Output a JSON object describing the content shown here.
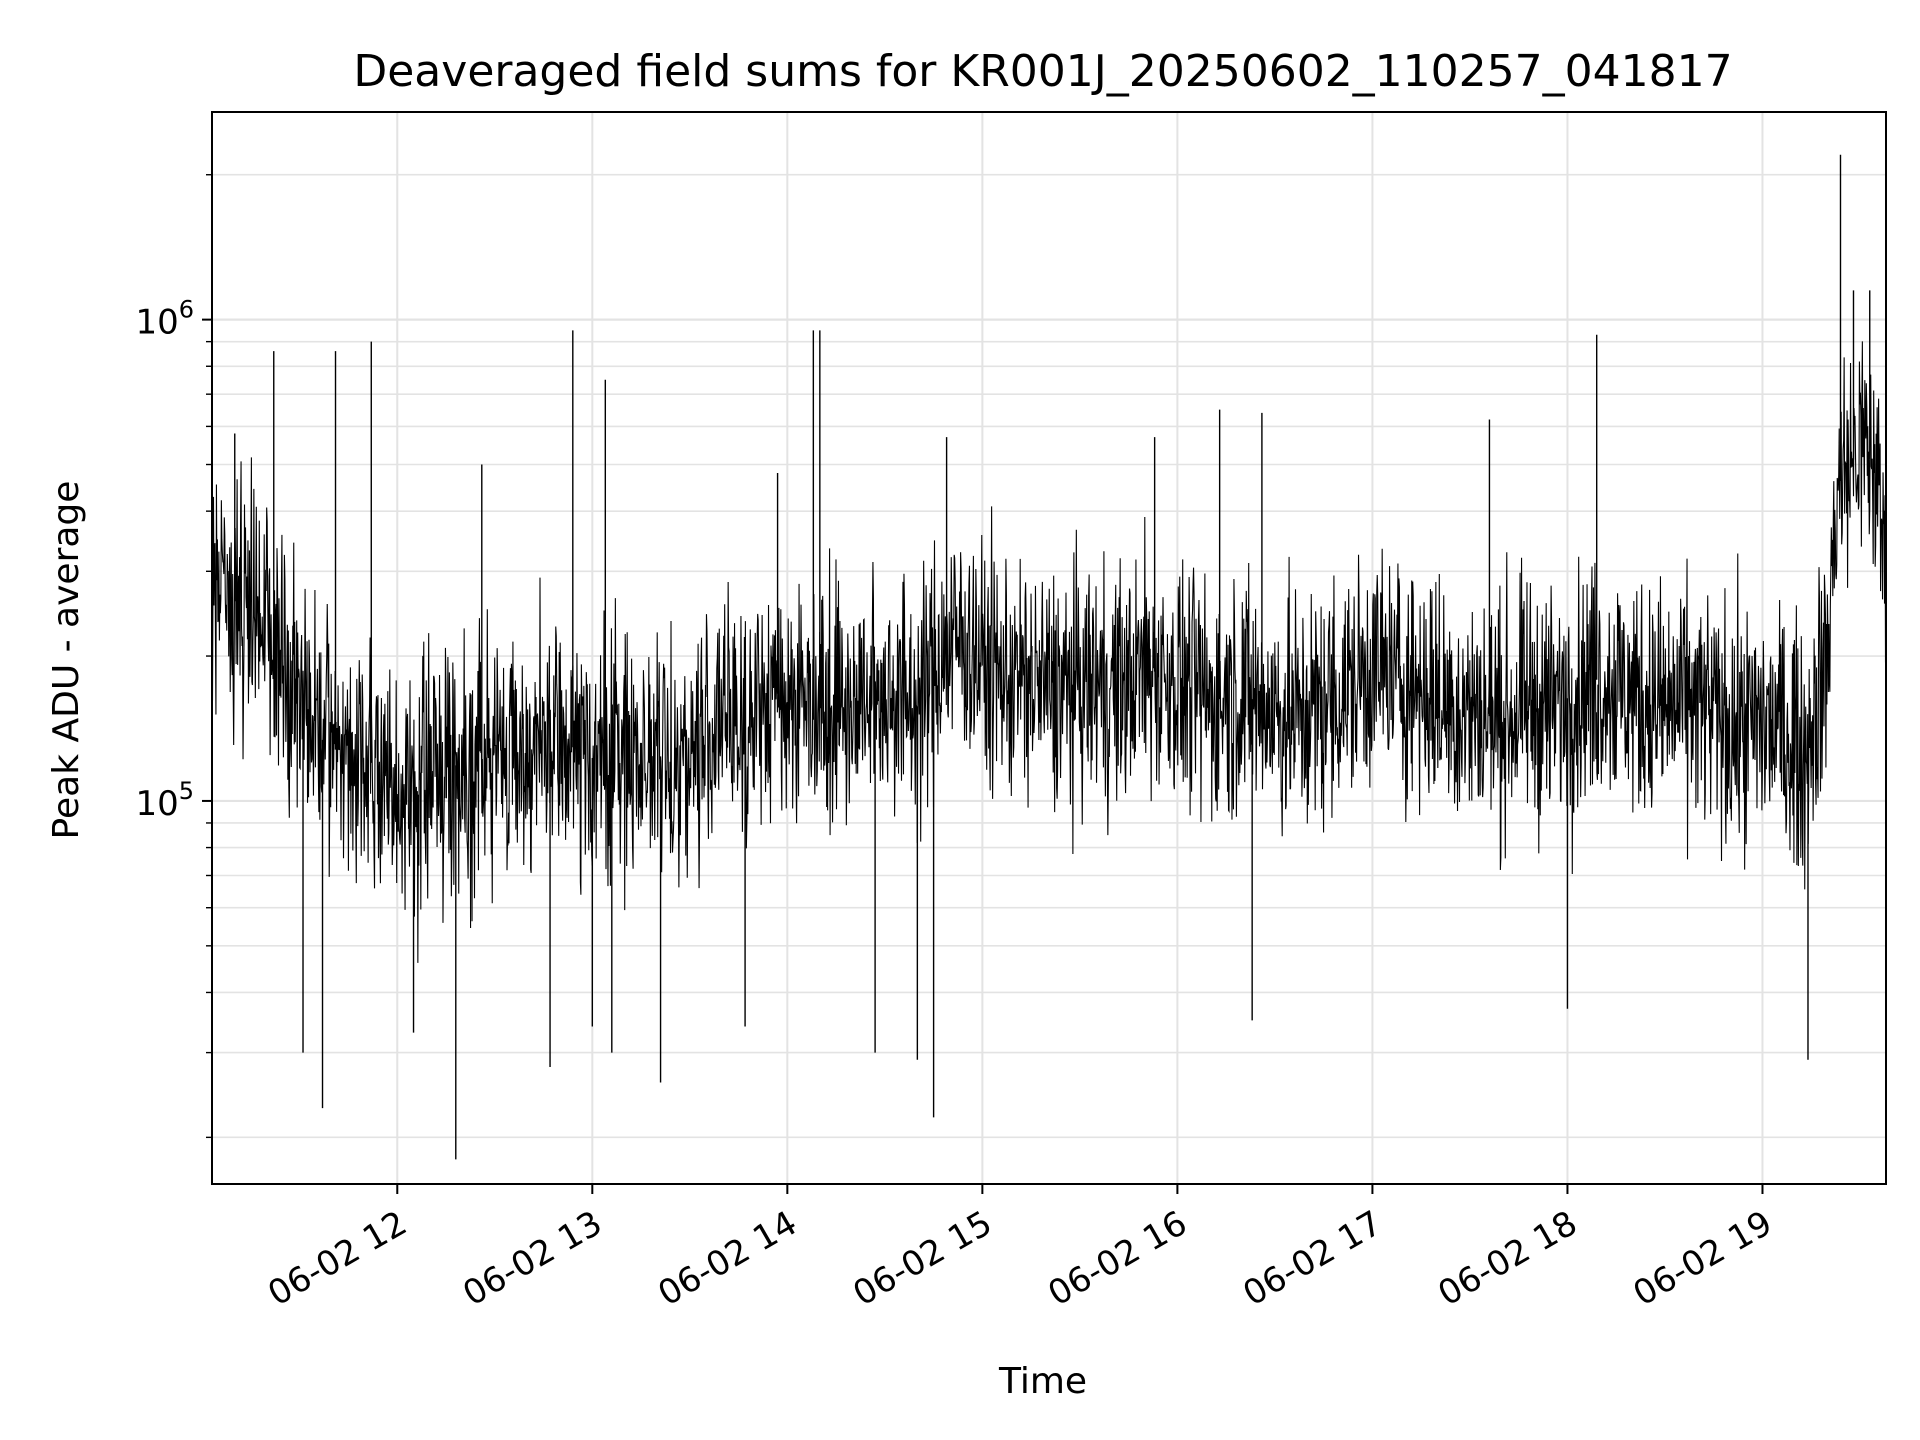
{
  "chart_data": {
    "type": "line",
    "title": "Deaveraged field sums for KR001J_20250602_110257_041817",
    "xlabel": "Time",
    "ylabel": "Peak ADU - average",
    "y_scale": "log",
    "ylim": [
      16000,
      2700000
    ],
    "xlim": [
      "2025-06-02 11:03",
      "2025-06-02 19:38"
    ],
    "grid": true,
    "line_color": "#000000",
    "x_ticks": [
      {
        "label": "06-02 12",
        "time": "2025-06-02 12:00"
      },
      {
        "label": "06-02 13",
        "time": "2025-06-02 13:00"
      },
      {
        "label": "06-02 14",
        "time": "2025-06-02 14:00"
      },
      {
        "label": "06-02 15",
        "time": "2025-06-02 15:00"
      },
      {
        "label": "06-02 16",
        "time": "2025-06-02 16:00"
      },
      {
        "label": "06-02 17",
        "time": "2025-06-02 17:00"
      },
      {
        "label": "06-02 18",
        "time": "2025-06-02 18:00"
      },
      {
        "label": "06-02 19",
        "time": "2025-06-02 19:00"
      }
    ],
    "y_ticks": [
      {
        "base": "10",
        "exp": "5",
        "value": 100000
      },
      {
        "base": "10",
        "exp": "6",
        "value": 1000000
      }
    ],
    "series": [
      {
        "points": [
          [
            "2025-06-02 11:03",
            280000
          ],
          [
            "2025-06-02 11:10",
            260000
          ],
          [
            "2025-06-02 11:17",
            240000
          ],
          [
            "2025-06-02 11:24",
            200000
          ],
          [
            "2025-06-02 11:31",
            160000
          ],
          [
            "2025-06-02 11:38",
            130000
          ],
          [
            "2025-06-02 11:45",
            125000
          ],
          [
            "2025-06-02 11:52",
            120000
          ],
          [
            "2025-06-02 11:59",
            95000
          ],
          [
            "2025-06-02 12:06",
            110000
          ],
          [
            "2025-06-02 12:13",
            120000
          ],
          [
            "2025-06-02 12:20",
            118000
          ],
          [
            "2025-06-02 12:27",
            122000
          ],
          [
            "2025-06-02 12:34",
            125000
          ],
          [
            "2025-06-02 12:41",
            130000
          ],
          [
            "2025-06-02 12:48",
            125000
          ],
          [
            "2025-06-02 12:55",
            130000
          ],
          [
            "2025-06-02 13:02",
            120000
          ],
          [
            "2025-06-02 13:09",
            125000
          ],
          [
            "2025-06-02 13:16",
            130000
          ],
          [
            "2025-06-02 13:23",
            118000
          ],
          [
            "2025-06-02 13:30",
            125000
          ],
          [
            "2025-06-02 13:37",
            140000
          ],
          [
            "2025-06-02 13:44",
            150000
          ],
          [
            "2025-06-02 13:51",
            150000
          ],
          [
            "2025-06-02 13:58",
            170000
          ],
          [
            "2025-06-02 14:05",
            160000
          ],
          [
            "2025-06-02 14:12",
            170000
          ],
          [
            "2025-06-02 14:19",
            155000
          ],
          [
            "2025-06-02 14:26",
            165000
          ],
          [
            "2025-06-02 14:33",
            170000
          ],
          [
            "2025-06-02 14:40",
            155000
          ],
          [
            "2025-06-02 14:47",
            200000
          ],
          [
            "2025-06-02 14:54",
            220000
          ],
          [
            "2025-06-02 15:01",
            190000
          ],
          [
            "2025-06-02 15:08",
            180000
          ],
          [
            "2025-06-02 15:15",
            175000
          ],
          [
            "2025-06-02 15:22",
            170000
          ],
          [
            "2025-06-02 15:29",
            170000
          ],
          [
            "2025-06-02 15:36",
            175000
          ],
          [
            "2025-06-02 15:43",
            170000
          ],
          [
            "2025-06-02 15:50",
            190000
          ],
          [
            "2025-06-02 15:57",
            180000
          ],
          [
            "2025-06-02 16:04",
            170000
          ],
          [
            "2025-06-02 16:11",
            160000
          ],
          [
            "2025-06-02 16:18",
            170000
          ],
          [
            "2025-06-02 16:25",
            160000
          ],
          [
            "2025-06-02 16:32",
            150000
          ],
          [
            "2025-06-02 16:39",
            150000
          ],
          [
            "2025-06-02 16:46",
            160000
          ],
          [
            "2025-06-02 16:53",
            170000
          ],
          [
            "2025-06-02 17:00",
            190000
          ],
          [
            "2025-06-02 17:07",
            180000
          ],
          [
            "2025-06-02 17:14",
            175000
          ],
          [
            "2025-06-02 17:21",
            160000
          ],
          [
            "2025-06-02 17:28",
            155000
          ],
          [
            "2025-06-02 17:35",
            150000
          ],
          [
            "2025-06-02 17:42",
            150000
          ],
          [
            "2025-06-02 17:49",
            160000
          ],
          [
            "2025-06-02 17:56",
            155000
          ],
          [
            "2025-06-02 18:03",
            170000
          ],
          [
            "2025-06-02 18:10",
            180000
          ],
          [
            "2025-06-02 18:17",
            170000
          ],
          [
            "2025-06-02 18:24",
            160000
          ],
          [
            "2025-06-02 18:31",
            155000
          ],
          [
            "2025-06-02 18:38",
            160000
          ],
          [
            "2025-06-02 18:45",
            150000
          ],
          [
            "2025-06-02 18:52",
            140000
          ],
          [
            "2025-06-02 18:59",
            145000
          ],
          [
            "2025-06-02 19:06",
            140000
          ],
          [
            "2025-06-02 19:13",
            125000
          ],
          [
            "2025-06-02 19:20",
            200000
          ],
          [
            "2025-06-02 19:23",
            450000
          ],
          [
            "2025-06-02 19:27",
            500000
          ],
          [
            "2025-06-02 19:31",
            550000
          ],
          [
            "2025-06-02 19:35",
            480000
          ],
          [
            "2025-06-02 19:38",
            300000
          ]
        ],
        "spikes": [
          [
            "2025-06-02 11:10",
            580000
          ],
          [
            "2025-06-02 11:22",
            860000
          ],
          [
            "2025-06-02 11:31",
            30000
          ],
          [
            "2025-06-02 11:37",
            23000
          ],
          [
            "2025-06-02 11:41",
            860000
          ],
          [
            "2025-06-02 11:52",
            900000
          ],
          [
            "2025-06-02 12:05",
            33000
          ],
          [
            "2025-06-02 12:18",
            18000
          ],
          [
            "2025-06-02 12:26",
            500000
          ],
          [
            "2025-06-02 12:47",
            28000
          ],
          [
            "2025-06-02 12:54",
            950000
          ],
          [
            "2025-06-02 13:00",
            34000
          ],
          [
            "2025-06-02 13:04",
            750000
          ],
          [
            "2025-06-02 13:06",
            30000
          ],
          [
            "2025-06-02 13:21",
            26000
          ],
          [
            "2025-06-02 13:47",
            34000
          ],
          [
            "2025-06-02 13:57",
            480000
          ],
          [
            "2025-06-02 14:08",
            950000
          ],
          [
            "2025-06-02 14:10",
            950000
          ],
          [
            "2025-06-02 14:27",
            30000
          ],
          [
            "2025-06-02 14:40",
            29000
          ],
          [
            "2025-06-02 14:45",
            22000
          ],
          [
            "2025-06-02 14:49",
            570000
          ],
          [
            "2025-06-02 15:53",
            570000
          ],
          [
            "2025-06-02 16:13",
            650000
          ],
          [
            "2025-06-02 16:23",
            35000
          ],
          [
            "2025-06-02 16:26",
            640000
          ],
          [
            "2025-06-02 17:36",
            620000
          ],
          [
            "2025-06-02 18:09",
            930000
          ],
          [
            "2025-06-02 18:00",
            37000
          ],
          [
            "2025-06-02 19:14",
            29000
          ],
          [
            "2025-06-02 19:24",
            2200000
          ],
          [
            "2025-06-02 19:28",
            1150000
          ],
          [
            "2025-06-02 19:33",
            1150000
          ]
        ]
      }
    ]
  }
}
